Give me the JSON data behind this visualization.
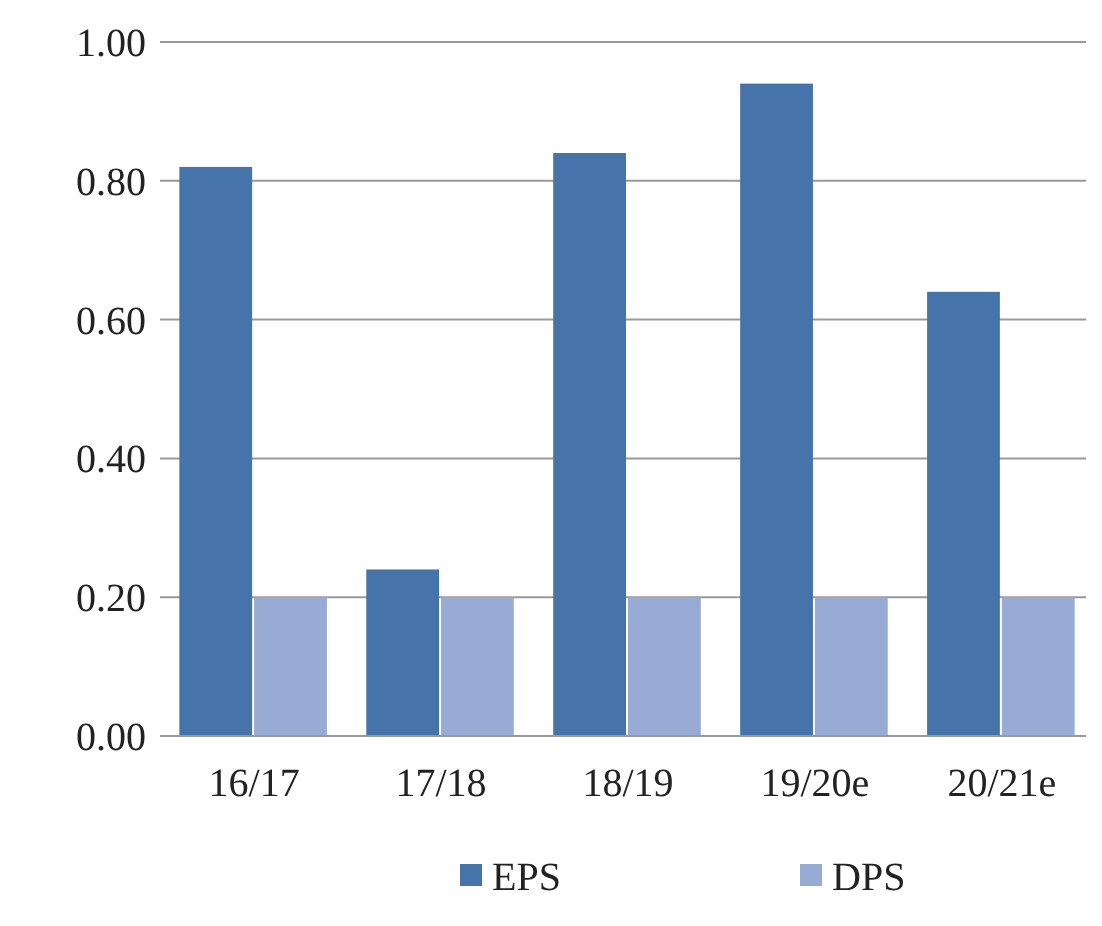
{
  "chart_data": {
    "type": "bar",
    "categories": [
      "16/17",
      "17/18",
      "18/19",
      "19/20e",
      "20/21e"
    ],
    "series": [
      {
        "name": "EPS",
        "color": "#4673aa",
        "values": [
          0.82,
          0.24,
          0.84,
          0.94,
          0.64
        ]
      },
      {
        "name": "DPS",
        "color": "#98abd4",
        "values": [
          0.2,
          0.2,
          0.2,
          0.2,
          0.2
        ]
      }
    ],
    "ylim": [
      0,
      1
    ],
    "yticks": [
      {
        "value": 0,
        "label": "0.00"
      },
      {
        "value": 0.2,
        "label": "0.20"
      },
      {
        "value": 0.4,
        "label": "0.40"
      },
      {
        "value": 0.6,
        "label": "0.60"
      },
      {
        "value": 0.8,
        "label": "0.80"
      },
      {
        "value": 1,
        "label": "1.00"
      }
    ],
    "grid": "y",
    "legend": "bottom"
  }
}
